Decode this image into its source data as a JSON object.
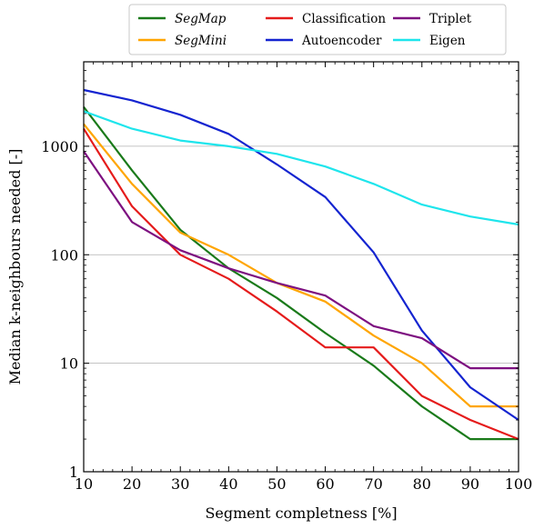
{
  "chart_data": {
    "type": "line",
    "xlabel": "Segment completness [%]",
    "ylabel": "Median k-neighbours needed [-]",
    "x": [
      10,
      20,
      30,
      40,
      50,
      60,
      70,
      80,
      90,
      100
    ],
    "xlim": [
      10,
      100
    ],
    "ylim": [
      1,
      6000
    ],
    "yscale": "log",
    "y_ticks": [
      1,
      10,
      100,
      1000
    ],
    "y_tick_labels": [
      "1",
      "10",
      "100",
      "1000"
    ],
    "x_ticks": [
      10,
      20,
      30,
      40,
      50,
      60,
      70,
      80,
      90,
      100
    ],
    "x_tick_labels": [
      "10",
      "20",
      "30",
      "40",
      "50",
      "60",
      "70",
      "80",
      "90",
      "100"
    ],
    "grid": "horizontal",
    "legend_position": "top, above plot",
    "series": [
      {
        "name": "SegMap",
        "italic": true,
        "color": "#1a7a1a",
        "values": [
          2300,
          600,
          170,
          75,
          40,
          19,
          9.5,
          4,
          2,
          2
        ]
      },
      {
        "name": "SegMini",
        "italic": true,
        "color": "#ffa500",
        "values": [
          1600,
          450,
          160,
          100,
          55,
          37,
          18,
          10,
          4,
          4
        ]
      },
      {
        "name": "Classification",
        "italic": false,
        "color": "#e51b1b",
        "values": [
          1450,
          280,
          100,
          60,
          30,
          14,
          14,
          5,
          3,
          2
        ]
      },
      {
        "name": "Autoencoder",
        "italic": false,
        "color": "#1424d0",
        "values": [
          3300,
          2650,
          1950,
          1300,
          680,
          340,
          105,
          20,
          6,
          3
        ]
      },
      {
        "name": "Triplet",
        "italic": false,
        "color": "#7d1080",
        "values": [
          900,
          200,
          110,
          75,
          55,
          42,
          22,
          17,
          9,
          9
        ]
      },
      {
        "name": "Eigen",
        "italic": false,
        "color": "#1ee5ec",
        "values": [
          2100,
          1450,
          1130,
          1000,
          850,
          650,
          450,
          290,
          225,
          190
        ]
      }
    ]
  }
}
